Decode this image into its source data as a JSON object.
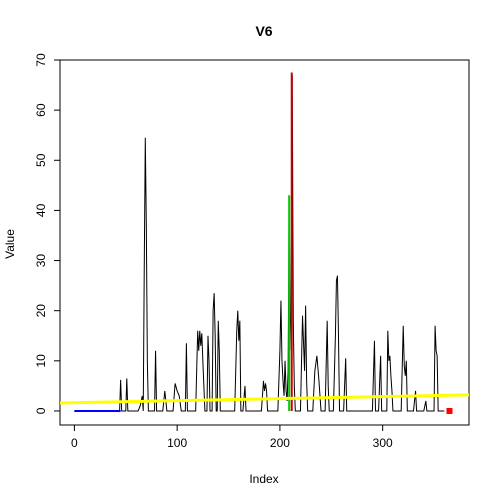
{
  "chart_data": {
    "type": "line",
    "title": "V6",
    "xlabel": "Index",
    "ylabel": "Value",
    "xlim": [
      -14,
      384
    ],
    "ylim": [
      -2.8,
      70
    ],
    "xticks": [
      0,
      100,
      200,
      300
    ],
    "yticks": [
      0,
      10,
      20,
      30,
      40,
      50,
      60,
      70
    ],
    "grid": false,
    "legend": "none",
    "series": [
      {
        "color": "#000000",
        "points": [
          [
            0,
            0
          ],
          [
            44,
            0
          ],
          [
            45,
            6.2
          ],
          [
            46,
            0
          ],
          [
            50,
            0
          ],
          [
            51,
            6.5
          ],
          [
            52,
            0
          ],
          [
            62,
            0
          ],
          [
            64,
            1
          ],
          [
            66,
            3
          ],
          [
            67,
            0
          ],
          [
            68,
            29
          ],
          [
            69,
            54.5
          ],
          [
            70,
            37
          ],
          [
            71,
            10
          ],
          [
            72,
            0
          ],
          [
            78,
            0
          ],
          [
            79,
            12
          ],
          [
            80,
            0
          ],
          [
            86,
            0
          ],
          [
            88,
            4
          ],
          [
            90,
            0
          ],
          [
            96,
            0
          ],
          [
            98,
            5.5
          ],
          [
            100,
            4
          ],
          [
            102,
            3
          ],
          [
            104,
            0
          ],
          [
            108,
            0
          ],
          [
            109,
            13.5
          ],
          [
            110,
            0
          ],
          [
            118,
            0
          ],
          [
            120,
            16
          ],
          [
            121,
            12
          ],
          [
            122,
            16
          ],
          [
            123,
            13
          ],
          [
            124,
            15.5
          ],
          [
            125,
            10
          ],
          [
            127,
            0
          ],
          [
            129,
            0
          ],
          [
            130,
            15
          ],
          [
            131,
            10
          ],
          [
            132,
            0
          ],
          [
            134,
            0
          ],
          [
            135,
            20
          ],
          [
            136,
            23.5
          ],
          [
            137,
            15
          ],
          [
            138,
            0
          ],
          [
            139,
            0
          ],
          [
            140,
            18
          ],
          [
            141,
            12
          ],
          [
            142,
            0
          ],
          [
            156,
            0
          ],
          [
            158,
            16
          ],
          [
            159,
            20
          ],
          [
            160,
            14
          ],
          [
            161,
            18
          ],
          [
            162,
            0
          ],
          [
            164,
            0
          ],
          [
            166,
            5
          ],
          [
            167,
            0
          ],
          [
            182,
            0
          ],
          [
            184,
            6
          ],
          [
            185,
            4
          ],
          [
            186,
            5.5
          ],
          [
            187,
            4
          ],
          [
            188,
            0
          ],
          [
            198,
            0
          ],
          [
            200,
            12
          ],
          [
            201,
            22
          ],
          [
            202,
            10
          ],
          [
            203,
            6
          ],
          [
            204,
            3
          ],
          [
            205,
            10
          ],
          [
            206,
            4
          ],
          [
            207,
            2
          ],
          [
            208,
            8
          ],
          [
            209,
            43
          ],
          [
            210,
            20
          ],
          [
            211,
            12
          ],
          [
            212,
            67
          ],
          [
            213,
            18
          ],
          [
            214,
            5
          ],
          [
            215,
            0
          ],
          [
            220,
            0
          ],
          [
            222,
            19
          ],
          [
            224,
            8
          ],
          [
            225,
            21
          ],
          [
            226,
            6
          ],
          [
            227,
            0
          ],
          [
            232,
            0
          ],
          [
            234,
            8
          ],
          [
            236,
            11
          ],
          [
            238,
            6
          ],
          [
            240,
            0
          ],
          [
            244,
            0
          ],
          [
            246,
            18
          ],
          [
            247,
            5
          ],
          [
            248,
            0
          ],
          [
            252,
            0
          ],
          [
            254,
            15
          ],
          [
            255,
            26
          ],
          [
            256,
            27
          ],
          [
            257,
            15
          ],
          [
            258,
            0
          ],
          [
            262,
            0
          ],
          [
            264,
            10.5
          ],
          [
            265,
            0
          ],
          [
            290,
            0
          ],
          [
            292,
            14
          ],
          [
            293,
            0
          ],
          [
            296,
            0
          ],
          [
            298,
            11
          ],
          [
            299,
            0
          ],
          [
            304,
            0
          ],
          [
            305,
            16
          ],
          [
            306,
            10
          ],
          [
            307,
            11
          ],
          [
            308,
            7
          ],
          [
            309,
            4
          ],
          [
            310,
            0
          ],
          [
            318,
            0
          ],
          [
            320,
            17
          ],
          [
            321,
            9
          ],
          [
            322,
            7
          ],
          [
            323,
            10
          ],
          [
            324,
            0
          ],
          [
            330,
            0
          ],
          [
            332,
            4
          ],
          [
            333,
            0
          ],
          [
            340,
            0
          ],
          [
            342,
            2
          ],
          [
            343,
            0
          ],
          [
            350,
            0
          ],
          [
            351,
            17
          ],
          [
            352,
            12
          ],
          [
            353,
            11
          ],
          [
            354,
            0
          ],
          [
            360,
            0
          ]
        ]
      },
      {
        "color": "#0000ff",
        "points": [
          [
            0,
            0
          ],
          [
            45,
            0
          ]
        ]
      },
      {
        "color": "#00cc00",
        "points": [
          [
            209,
            0
          ],
          [
            209,
            43
          ]
        ]
      },
      {
        "color": "#cc0000",
        "points": [
          [
            211.5,
            0
          ],
          [
            211.5,
            67.5
          ]
        ]
      },
      {
        "color": "#ffff00",
        "points": [
          [
            -14,
            1.6
          ],
          [
            384,
            3.2
          ]
        ]
      },
      {
        "color": "#ff0000",
        "points": [
          [
            365,
            0
          ]
        ]
      }
    ]
  }
}
